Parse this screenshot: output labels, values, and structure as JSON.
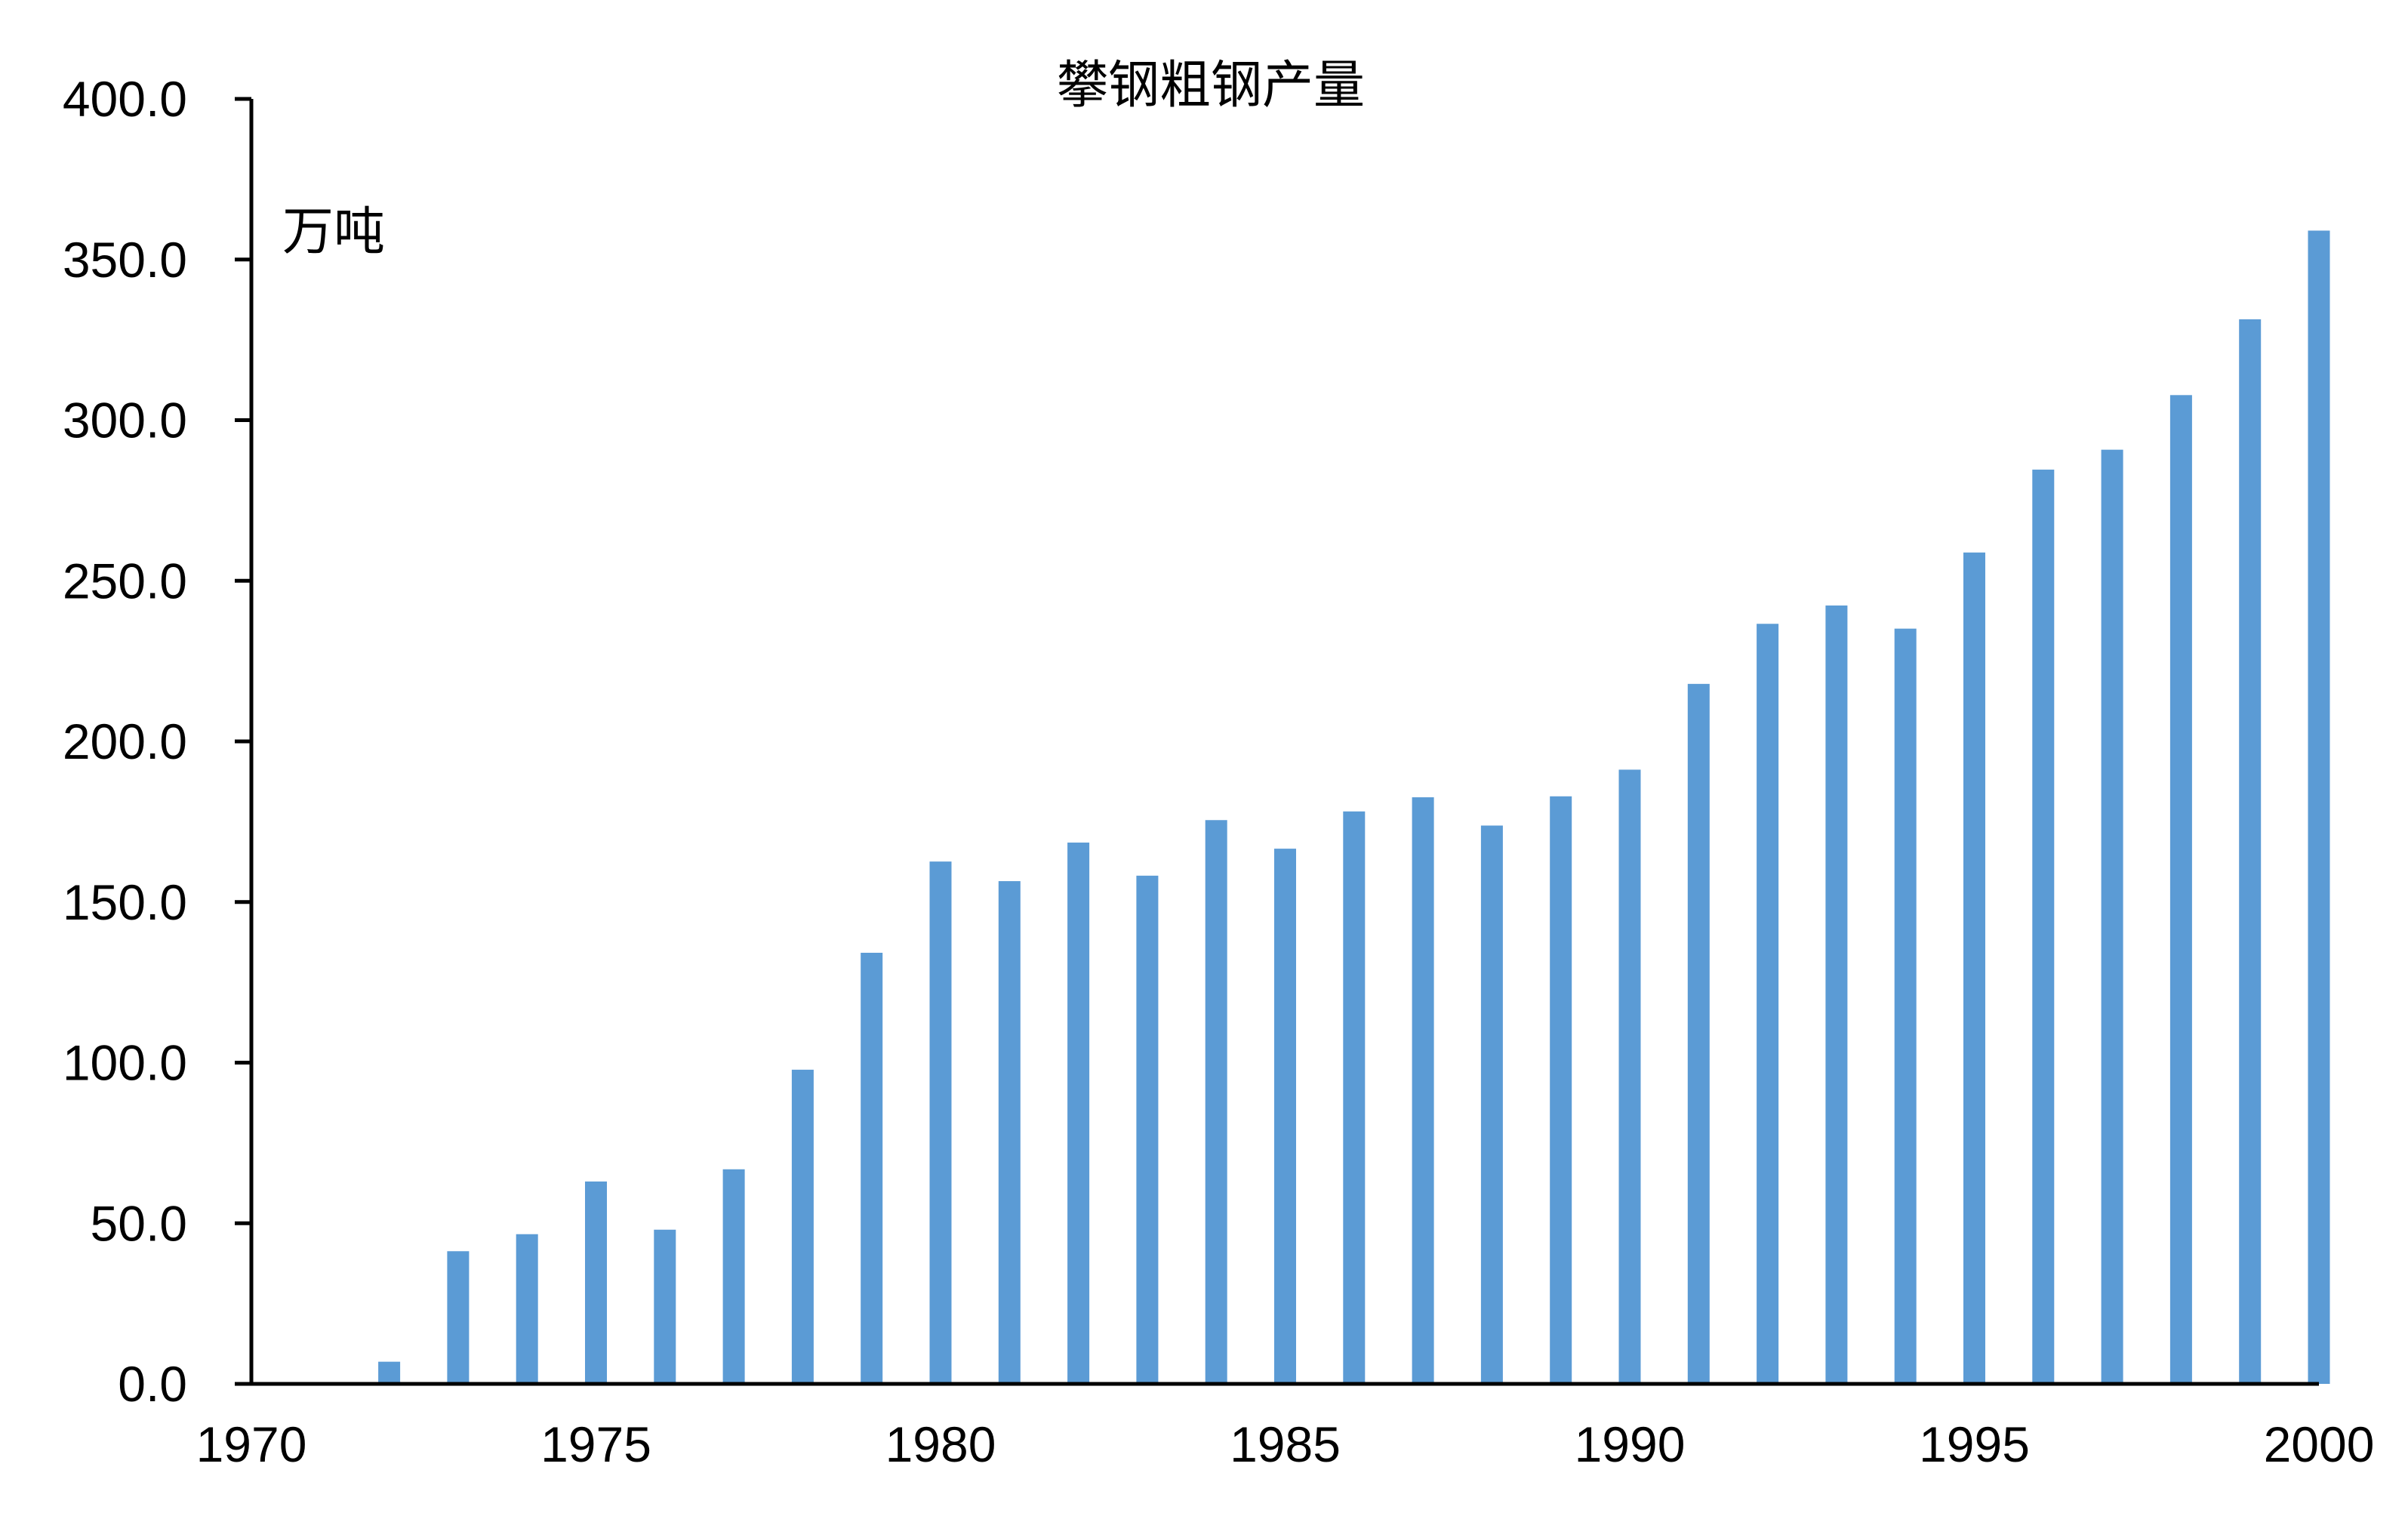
{
  "chart_data": {
    "type": "bar",
    "title": "攀钢粗钢产量",
    "ylabel": "万吨",
    "xlabel": "",
    "x_ticks": [
      "1970",
      "1975",
      "1980",
      "1985",
      "1990",
      "1995",
      "2000"
    ],
    "y_ticks": [
      "0.0",
      "50.0",
      "100.0",
      "150.0",
      "200.0",
      "250.0",
      "300.0",
      "350.0",
      "400.0"
    ],
    "xlim": [
      1970,
      2000
    ],
    "ylim": [
      0,
      400
    ],
    "grid": false,
    "legend": "none",
    "bar_color": "#5b9bd5",
    "categories": [
      1972,
      1973,
      1974,
      1975,
      1976,
      1977,
      1978,
      1979,
      1980,
      1981,
      1982,
      1983,
      1984,
      1985,
      1986,
      1987,
      1988,
      1989,
      1990,
      1991,
      1992,
      1993,
      1994,
      1995,
      1996,
      1997,
      1998,
      1999,
      2000
    ],
    "values": [
      6.9,
      41.3,
      46.6,
      63.0,
      48.0,
      66.8,
      97.8,
      134.2,
      162.6,
      156.5,
      168.5,
      158.2,
      175.5,
      166.6,
      178.2,
      182.6,
      173.8,
      182.9,
      191.2,
      217.9,
      236.6,
      242.3,
      235.1,
      258.8,
      284.6,
      290.8,
      307.8,
      331.4,
      359.0
    ]
  }
}
